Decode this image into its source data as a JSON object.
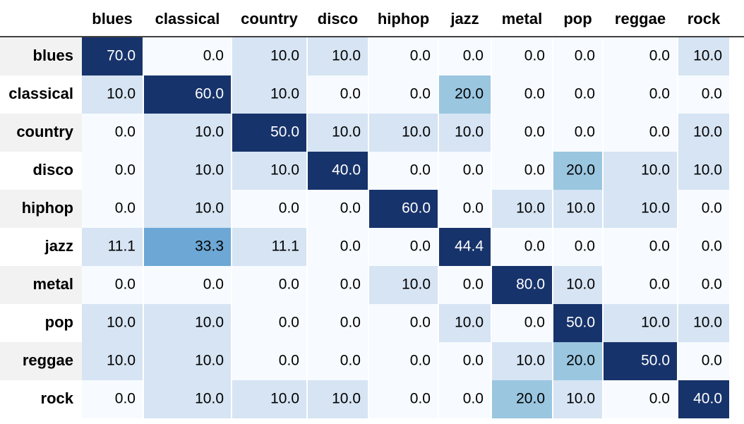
{
  "chart_data": {
    "type": "heatmap",
    "title": "",
    "xlabel": "",
    "ylabel": "",
    "columns": [
      "blues",
      "classical",
      "country",
      "disco",
      "hiphop",
      "jazz",
      "metal",
      "pop",
      "reggae",
      "rock"
    ],
    "rows": [
      "blues",
      "classical",
      "country",
      "disco",
      "hiphop",
      "jazz",
      "metal",
      "pop",
      "reggae",
      "rock"
    ],
    "values": [
      [
        "70.0",
        "0.0",
        "10.0",
        "10.0",
        "0.0",
        "0.0",
        "0.0",
        "0.0",
        "0.0",
        "10.0"
      ],
      [
        "10.0",
        "60.0",
        "10.0",
        "0.0",
        "0.0",
        "20.0",
        "0.0",
        "0.0",
        "0.0",
        "0.0"
      ],
      [
        "0.0",
        "10.0",
        "50.0",
        "10.0",
        "10.0",
        "10.0",
        "0.0",
        "0.0",
        "0.0",
        "10.0"
      ],
      [
        "0.0",
        "10.0",
        "10.0",
        "40.0",
        "0.0",
        "0.0",
        "0.0",
        "20.0",
        "10.0",
        "10.0"
      ],
      [
        "0.0",
        "10.0",
        "0.0",
        "0.0",
        "60.0",
        "0.0",
        "10.0",
        "10.0",
        "10.0",
        "0.0"
      ],
      [
        "11.1",
        "33.3",
        "11.1",
        "0.0",
        "0.0",
        "44.4",
        "0.0",
        "0.0",
        "0.0",
        "0.0"
      ],
      [
        "0.0",
        "0.0",
        "0.0",
        "0.0",
        "10.0",
        "0.0",
        "80.0",
        "10.0",
        "0.0",
        "0.0"
      ],
      [
        "10.0",
        "10.0",
        "0.0",
        "0.0",
        "0.0",
        "10.0",
        "0.0",
        "50.0",
        "10.0",
        "10.0"
      ],
      [
        "10.0",
        "10.0",
        "0.0",
        "0.0",
        "0.0",
        "0.0",
        "10.0",
        "20.0",
        "50.0",
        "0.0"
      ],
      [
        "0.0",
        "10.0",
        "10.0",
        "10.0",
        "0.0",
        "0.0",
        "20.0",
        "10.0",
        "0.0",
        "40.0"
      ]
    ],
    "colormap": {
      "zero": "#f7fbff",
      "ten": "#d6e4f3",
      "twenty": "#9ac6e0",
      "thirtythree": "#6ca7d5",
      "high": "#17336b"
    },
    "header_row_bg": "#f2f2f2",
    "text_dark": "#000000",
    "text_light": "#ffffff",
    "divider_color": "#000000"
  }
}
